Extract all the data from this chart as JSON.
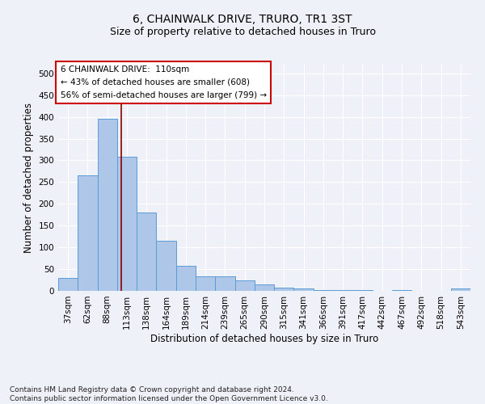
{
  "title": "6, CHAINWALK DRIVE, TRURO, TR1 3ST",
  "subtitle": "Size of property relative to detached houses in Truro",
  "xlabel": "Distribution of detached houses by size in Truro",
  "ylabel": "Number of detached properties",
  "bar_labels": [
    "37sqm",
    "62sqm",
    "88sqm",
    "113sqm",
    "138sqm",
    "164sqm",
    "189sqm",
    "214sqm",
    "239sqm",
    "265sqm",
    "290sqm",
    "315sqm",
    "341sqm",
    "366sqm",
    "391sqm",
    "417sqm",
    "442sqm",
    "467sqm",
    "492sqm",
    "518sqm",
    "543sqm"
  ],
  "bar_values": [
    30,
    265,
    395,
    308,
    181,
    116,
    58,
    33,
    33,
    25,
    14,
    7,
    5,
    1,
    1,
    1,
    0,
    1,
    0,
    0,
    5
  ],
  "bar_color": "#aec6e8",
  "bar_edge_color": "#5b9bd5",
  "ylim": [
    0,
    520
  ],
  "yticks": [
    0,
    50,
    100,
    150,
    200,
    250,
    300,
    350,
    400,
    450,
    500
  ],
  "vline_x": 2.73,
  "vline_color": "#8b0000",
  "annotation_box_text": "6 CHAINWALK DRIVE:  110sqm\n← 43% of detached houses are smaller (608)\n56% of semi-detached houses are larger (799) →",
  "annotation_box_color": "#ffffff",
  "annotation_box_edge_color": "#cc0000",
  "footnote": "Contains HM Land Registry data © Crown copyright and database right 2024.\nContains public sector information licensed under the Open Government Licence v3.0.",
  "title_fontsize": 10,
  "subtitle_fontsize": 9,
  "xlabel_fontsize": 8.5,
  "ylabel_fontsize": 8.5,
  "tick_fontsize": 7.5,
  "annotation_fontsize": 7.5,
  "footnote_fontsize": 6.5,
  "background_color": "#eef2f8",
  "plot_bg_color": "#eef2f8"
}
